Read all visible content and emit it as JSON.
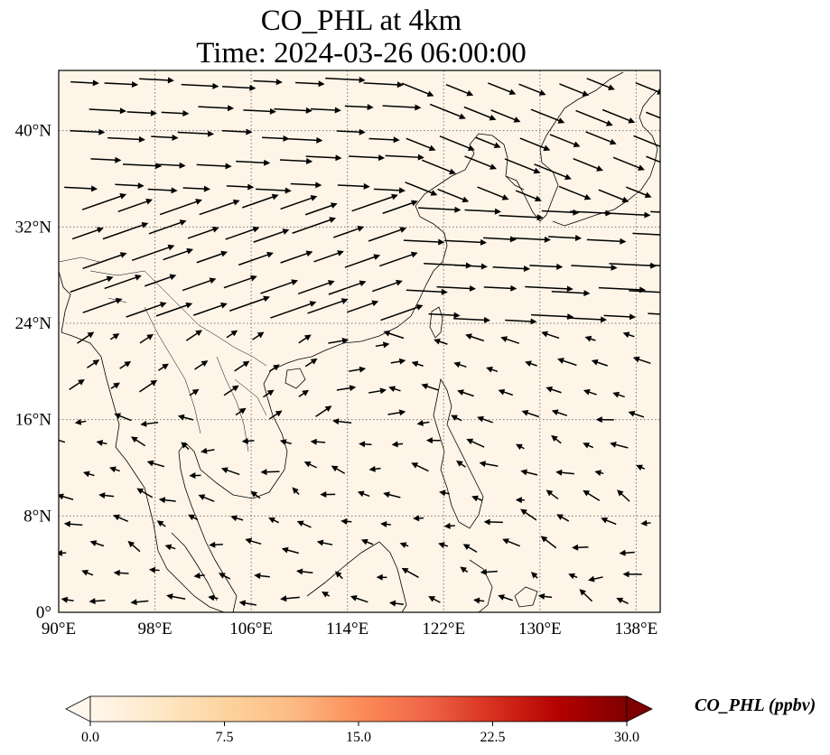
{
  "title": {
    "line1": "CO_PHL at 4km",
    "line2": "Time: 2024-03-26 06:00:00"
  },
  "map": {
    "extent": {
      "lon_min": 90,
      "lon_max": 140,
      "lat_min": 0,
      "lat_max": 45
    },
    "background_color": "#fef5e8",
    "coastline_color": "#000000",
    "gridline_style": "dotted",
    "x_ticks": [
      "90°E",
      "98°E",
      "106°E",
      "114°E",
      "122°E",
      "130°E",
      "138°E"
    ],
    "x_tick_values": [
      90,
      98,
      106,
      114,
      122,
      130,
      138
    ],
    "y_ticks": [
      "0°",
      "8°N",
      "16°N",
      "24°N",
      "32°N",
      "40°N"
    ],
    "y_tick_values": [
      0,
      8,
      16,
      24,
      32,
      40
    ],
    "wind_vectors_description_free": true
  },
  "colorbar": {
    "label": "CO_PHL (ppbv)",
    "min": 0.0,
    "max": 30.0,
    "ticks": [
      "0.0",
      "7.5",
      "15.0",
      "22.5",
      "30.0"
    ],
    "tick_values": [
      0,
      7.5,
      15,
      22.5,
      30
    ],
    "colormap": "OrRd",
    "colors": [
      "#fff7ec",
      "#fee8c8",
      "#fdd49e",
      "#fdbb84",
      "#fc8d59",
      "#ef6548",
      "#d7301f",
      "#b30000",
      "#7f0000"
    ],
    "extend": "both"
  }
}
